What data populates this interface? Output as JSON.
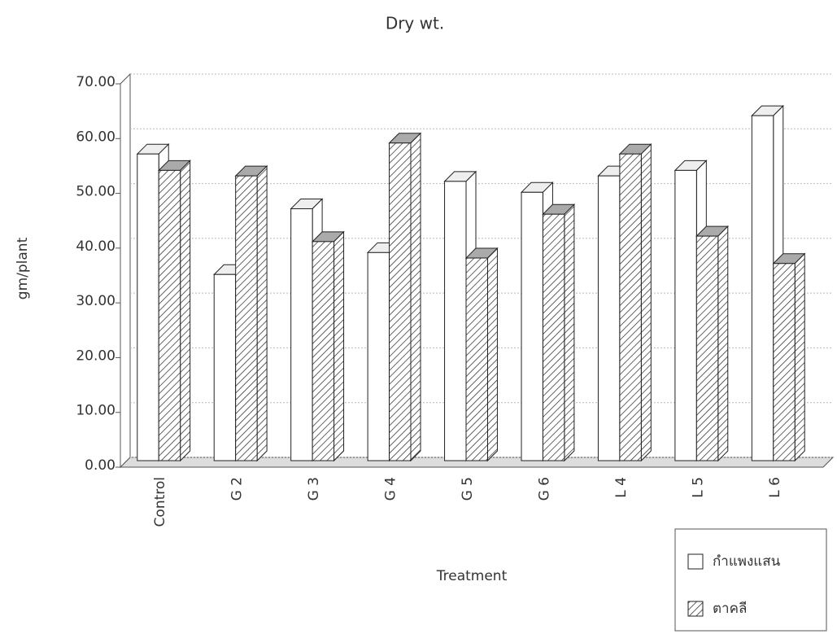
{
  "chart_data": {
    "type": "bar3d",
    "title": "Dry wt.",
    "x_label": "Treatment",
    "y_label": "gm/plant",
    "categories": [
      "Control",
      "G 2",
      "G 3",
      "G 4",
      "G 5",
      "G 6",
      "L 4",
      "L 5",
      "L 6"
    ],
    "series": [
      {
        "name": "กำแพงแสน",
        "color": "#ffffff",
        "hatch": false,
        "values": [
          56,
          34,
          46,
          38,
          51,
          49,
          52,
          53,
          63
        ]
      },
      {
        "name": "ตาคลี",
        "color": "#ffffff",
        "hatch": true,
        "values": [
          53,
          52,
          40,
          58,
          37,
          45,
          56,
          41,
          36
        ]
      }
    ],
    "ylim": [
      0,
      70
    ],
    "yticks": [
      {
        "value": 0,
        "label": "0.00"
      },
      {
        "value": 10,
        "label": "10.00"
      },
      {
        "value": 20,
        "label": "20.00"
      },
      {
        "value": 30,
        "label": "30.00"
      },
      {
        "value": 40,
        "label": "40.00"
      },
      {
        "value": 50,
        "label": "50.00"
      },
      {
        "value": 60,
        "label": "60.00"
      },
      {
        "value": 70,
        "label": "70.00"
      }
    ],
    "grid": true,
    "legend": "bottom-right"
  }
}
